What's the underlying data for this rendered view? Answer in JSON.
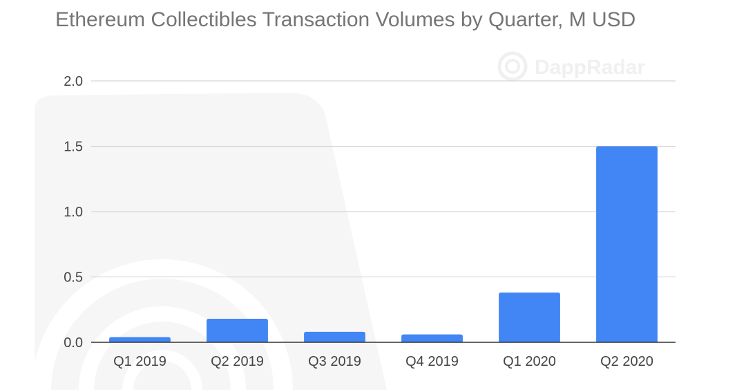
{
  "watermark": {
    "brand": "DappRadar"
  },
  "chart_data": {
    "type": "bar",
    "title": "Ethereum Collectibles Transaction Volumes by Quarter, M USD",
    "xlabel": "",
    "ylabel": "",
    "categories": [
      "Q1 2019",
      "Q2 2019",
      "Q3 2019",
      "Q4 2019",
      "Q1 2020",
      "Q2 2020"
    ],
    "values": [
      0.04,
      0.18,
      0.08,
      0.06,
      0.38,
      1.5
    ],
    "ylim": [
      0,
      2.0
    ],
    "y_ticks": [
      "0.0",
      "0.5",
      "1.0",
      "1.5",
      "2.0"
    ],
    "grid": true,
    "legend": "none",
    "colors": {
      "bar": "#4285f4",
      "grid": "#cccccc",
      "axis": "#333333"
    }
  }
}
